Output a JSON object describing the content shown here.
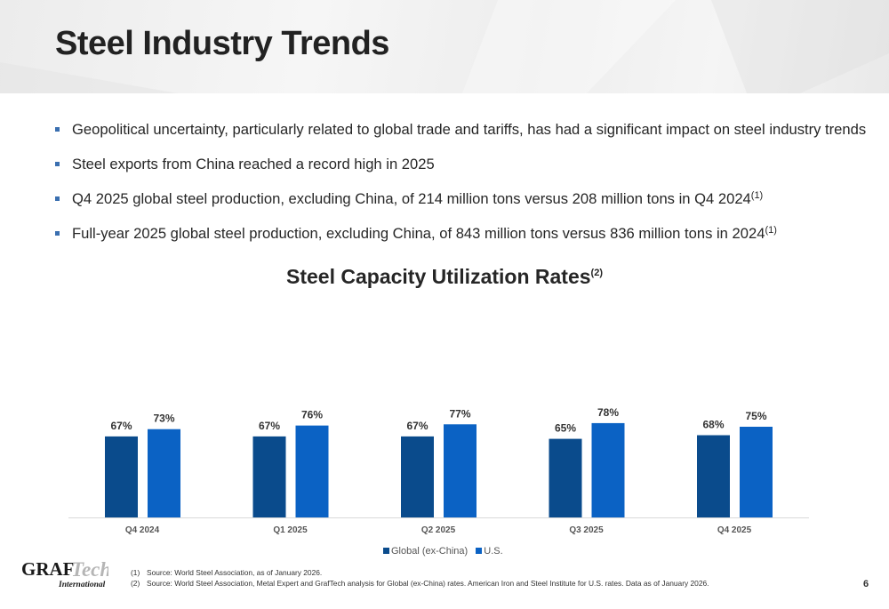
{
  "slide": {
    "title": "Steel Industry Trends",
    "page_number": "6"
  },
  "bullets": [
    {
      "text": "Geopolitical uncertainty, particularly related to global trade and tariffs, has had a significant impact on steel industry trends",
      "sup": ""
    },
    {
      "text": "Steel exports from China reached a record high in 2025",
      "sup": ""
    },
    {
      "text": "Q4 2025 global steel production, excluding China, of 214 million tons versus 208 million tons in Q4 2024",
      "sup": "(1)"
    },
    {
      "text": "Full-year 2025 global steel production, excluding China, of 843 million tons versus 836 million tons in 2024",
      "sup": "(1)"
    }
  ],
  "chart_data": {
    "type": "bar",
    "title": "Steel Capacity Utilization Rates",
    "title_sup": "(2)",
    "categories": [
      "Q4 2024",
      "Q1 2025",
      "Q2 2025",
      "Q3 2025",
      "Q4 2025"
    ],
    "series": [
      {
        "name": "Global (ex-China)",
        "values": [
          67,
          67,
          67,
          65,
          68
        ],
        "labels": [
          "67%",
          "67%",
          "67%",
          "65%",
          "68%"
        ],
        "color": "#0a4b8c"
      },
      {
        "name": "U.S.",
        "values": [
          73,
          76,
          77,
          78,
          75
        ],
        "labels": [
          "73%",
          "76%",
          "77%",
          "78%",
          "75%"
        ],
        "color": "#0b62c4"
      }
    ],
    "xlabel": "",
    "ylabel": "",
    "ylim": [
      0,
      100
    ],
    "grid": false,
    "legend": "bottom-center"
  },
  "logo": {
    "top": "GRAFTech",
    "bottom": "International"
  },
  "footnotes": [
    {
      "num": "(1)",
      "text": "Source: World Steel Association, as of January 2026."
    },
    {
      "num": "(2)",
      "text": "Source: World Steel Association, Metal Expert and GrafTech analysis for Global (ex-China) rates.  American Iron and Steel Institute for U.S. rates.  Data as of January 2026."
    }
  ],
  "colors": {
    "accent": "#3a6fb0",
    "global_bar": "#0a4b8c",
    "us_bar": "#0b62c4"
  }
}
